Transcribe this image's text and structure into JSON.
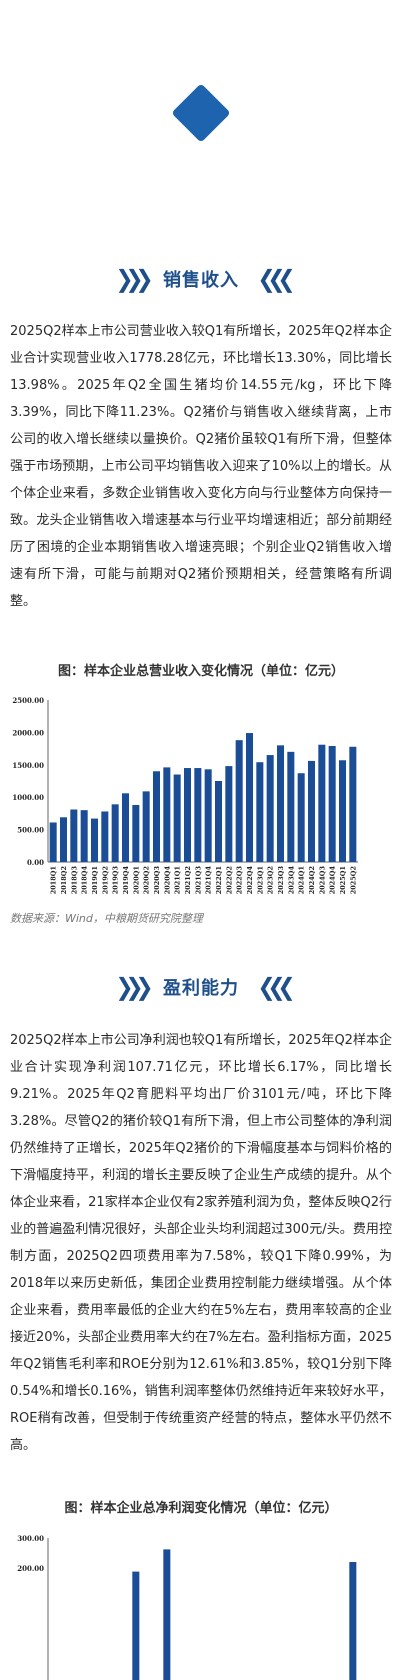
{
  "sections": [
    {
      "title": "销售收入",
      "paragraph": "2025Q2样本上市公司营业收入较Q1有所增长，2025年Q2样本企业合计实现营业收入1778.28亿元，环比增长13.30%，同比增长13.98%。2025年Q2全国生猪均价14.55元/kg，环比下降3.39%，同比下降11.23%。Q2猪价与销售收入继续背离，上市公司的收入增长继续以量换价。Q2猪价虽较Q1有所下滑，但整体强于市场预期，上市公司平均销售收入迎来了10%以上的增长。从个体企业来看，多数企业销售收入变化方向与行业整体方向保持一致。龙头企业销售收入增速基本与行业平均增速相近；部分前期经历了困境的企业本期销售收入增速亮眼；个别企业Q2销售收入增速有所下滑，可能与前期对Q2猪价预期相关，经营策略有所调整。",
      "figure_title": "图：样本企业总营业收入变化情况（单位：亿元）",
      "source": "数据来源：Wind，中粮期货研究院整理"
    },
    {
      "title": "盈利能力",
      "paragraph": "2025Q2样本上市公司净利润也较Q1有所增长，2025年Q2样本企业合计实现净利润107.71亿元，环比增长6.17%，同比增长9.21%。2025年Q2育肥料平均出厂价3101元/吨，环比下降3.28%。尽管Q2的猪价较Q1有所下滑，但上市公司整体的净利润仍然维持了正增长，2025年Q2猪价的下滑幅度基本与饲料价格的下滑幅度持平，利润的增长主要反映了企业生产成绩的提升。从个体企业来看，21家样本企业仅有2家养殖利润为负，整体反映Q2行业的普遍盈利情况很好，头部企业头均利润超过300元/头。费用控制方面，2025Q2四项费用率为7.58%，较Q1下降0.99%，为2018年以来历史新低，集团企业费用控制能力继续增强。从个体企业来看，费用率最低的企业大约在5%左右，费用率较高的企业接近20%，头部企业费用率大约在7%左右。盈利指标方面，2025年Q2销售毛利率和ROE分别为12.61%和3.85%，较Q1分别下降0.54%和增长0.16%，销售利润率整体仍然维持近年来较好水平，ROE稍有改善，但受制于传统重资产经营的特点，整体水平仍然不高。",
      "figure_title": "图：样本企业总净利润变化情况（单位：亿元）"
    }
  ],
  "colors": {
    "accent": "#1e4f8a",
    "bar": "#1a4d96",
    "diamond": "#1d63ad"
  },
  "chart_data": [
    {
      "type": "bar",
      "title": "图：样本企业总营业收入变化情况（单位：亿元）",
      "categories": [
        "2018Q1",
        "2018Q2",
        "2018Q3",
        "2018Q4",
        "2019Q1",
        "2019Q2",
        "2019Q3",
        "2019Q4",
        "2020Q1",
        "2020Q2",
        "2020Q3",
        "2020Q4",
        "2021Q1",
        "2021Q2",
        "2021Q3",
        "2021Q4",
        "2022Q1",
        "2022Q2",
        "2022Q3",
        "2022Q4",
        "2023Q1",
        "2023Q2",
        "2023Q3",
        "2023Q4",
        "2024Q1",
        "2024Q2",
        "2024Q3",
        "2024Q4",
        "2025Q1",
        "2025Q2"
      ],
      "values": [
        610,
        690,
        810,
        800,
        670,
        780,
        890,
        1060,
        880,
        1090,
        1400,
        1460,
        1350,
        1450,
        1450,
        1430,
        1250,
        1480,
        1880,
        1990,
        1540,
        1650,
        1800,
        1700,
        1370,
        1560,
        1810,
        1790,
        1570,
        1778.28
      ],
      "yticks": [
        "0.00",
        "500.00",
        "1000.00",
        "1500.00",
        "2000.00",
        "2500.00"
      ],
      "ylim": [
        0,
        2500
      ]
    },
    {
      "type": "bar",
      "title": "图：样本企业总净利润变化情况（单位：亿元）",
      "yticks": [
        "300.00",
        "200.00"
      ],
      "ylim": [
        0,
        300
      ]
    }
  ]
}
